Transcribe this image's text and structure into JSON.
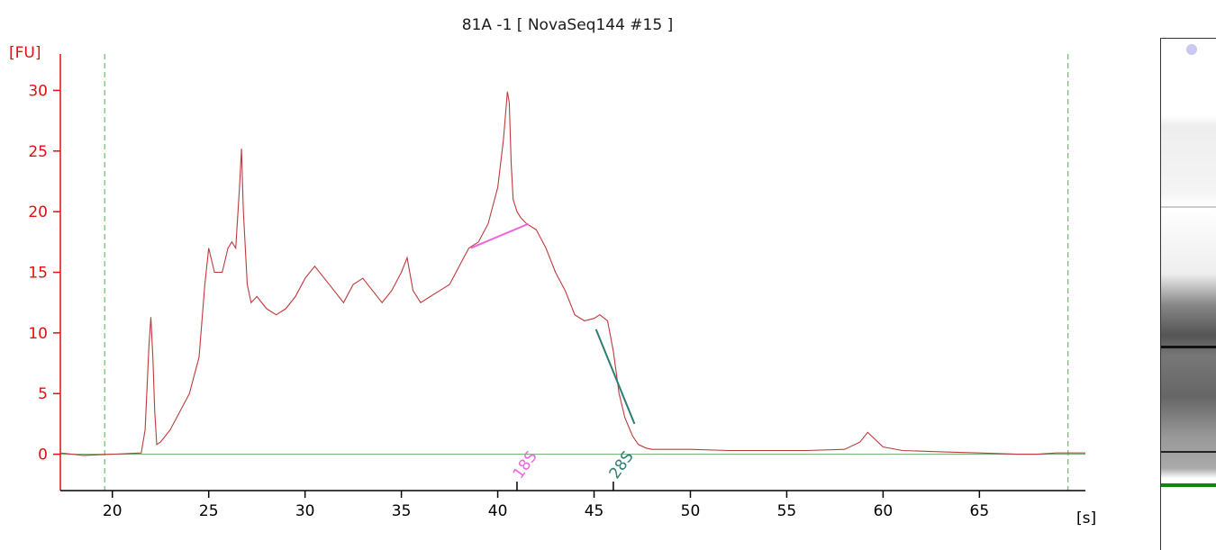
{
  "title": "81A -1  [ NovaSeq144 #15 ]",
  "colors": {
    "trace": "#c0393b",
    "y_axis": "#e01010",
    "baseline": "#66aa66",
    "marker_lines": "#4caf50",
    "18s": "#ee66dd",
    "28s": "#2e7d74",
    "ladder_band": "#0a8a0a"
  },
  "chart_data": {
    "type": "line",
    "title": "81A -1  [ NovaSeq144 #15 ]",
    "ylabel": "[FU]",
    "xlabel": "[s]",
    "xlim": [
      17.3,
      70.5
    ],
    "ylim": [
      -3,
      33
    ],
    "x_ticks": [
      "20",
      "25",
      "30",
      "35",
      "40",
      "45",
      "50",
      "55",
      "60",
      "65"
    ],
    "y_ticks": [
      "0",
      "5",
      "10",
      "15",
      "20",
      "25",
      "30"
    ],
    "grid": false,
    "markers_vertical": [
      19.6,
      69.6
    ],
    "peak_labels": [
      {
        "label": "18S",
        "x": 41.0,
        "baseline_from": [
          38.6,
          17.0
        ],
        "baseline_to": [
          41.6,
          19.0
        ]
      },
      {
        "label": "28S",
        "x": 46.0,
        "baseline_from": [
          45.1,
          10.3
        ],
        "baseline_to": [
          47.1,
          2.5
        ]
      }
    ],
    "series": [
      {
        "x": [
          17.3,
          18.5,
          20.0,
          21.5,
          21.7,
          21.9,
          22.0,
          22.1,
          22.2,
          22.3,
          22.5,
          23.0,
          23.5,
          24.0,
          24.5,
          24.8,
          25.0,
          25.3,
          25.7,
          26.0,
          26.2,
          26.4,
          26.6,
          26.7,
          26.8,
          27.0,
          27.2,
          27.5,
          28.0,
          28.5,
          29.0,
          29.5,
          30.0,
          30.5,
          31.0,
          31.5,
          32.0,
          32.5,
          33.0,
          33.5,
          34.0,
          34.5,
          35.0,
          35.3,
          35.6,
          36.0,
          36.5,
          37.0,
          37.5,
          38.0,
          38.5,
          39.0,
          39.5,
          40.0,
          40.3,
          40.5,
          40.6,
          40.7,
          40.8,
          41.0,
          41.2,
          41.5,
          42.0,
          42.5,
          43.0,
          43.5,
          44.0,
          44.5,
          45.0,
          45.3,
          45.7,
          46.0,
          46.3,
          46.6,
          47.0,
          47.3,
          47.7,
          48.0,
          49.0,
          50.0,
          52.0,
          54.0,
          56.0,
          58.0,
          58.8,
          59.2,
          59.6,
          60.0,
          61.0,
          63.0,
          65.0,
          67.0,
          68.0,
          69.0,
          70.0,
          70.5
        ],
        "y": [
          0.1,
          -0.1,
          0.0,
          0.1,
          2.0,
          9.0,
          11.3,
          8.0,
          3.5,
          0.8,
          1.0,
          2.0,
          3.5,
          5.0,
          8.0,
          14.0,
          17.0,
          15.0,
          15.0,
          17.0,
          17.5,
          17.0,
          22.0,
          25.2,
          20.0,
          14.0,
          12.5,
          13.0,
          12.0,
          11.5,
          12.0,
          13.0,
          14.5,
          15.5,
          14.5,
          13.5,
          12.5,
          14.0,
          14.5,
          13.5,
          12.5,
          13.5,
          15.0,
          16.2,
          13.5,
          12.5,
          13.0,
          13.5,
          14.0,
          15.5,
          17.0,
          17.5,
          19.0,
          22.0,
          26.0,
          29.9,
          29.0,
          24.0,
          21.0,
          20.0,
          19.5,
          19.0,
          18.5,
          17.0,
          15.0,
          13.5,
          11.5,
          11.0,
          11.2,
          11.5,
          11.0,
          8.5,
          5.0,
          3.0,
          1.5,
          0.8,
          0.5,
          0.4,
          0.4,
          0.4,
          0.3,
          0.3,
          0.3,
          0.4,
          1.0,
          1.8,
          1.2,
          0.6,
          0.3,
          0.2,
          0.1,
          0.0,
          0.0,
          0.1,
          0.1,
          0.1
        ]
      }
    ]
  }
}
